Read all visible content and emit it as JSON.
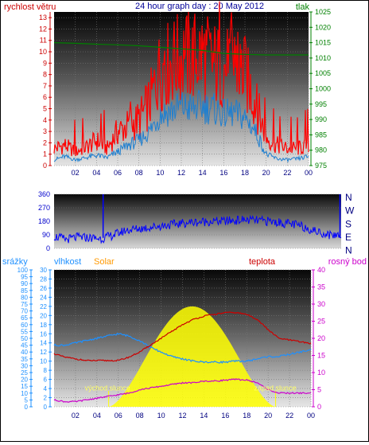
{
  "chart_data": [
    {
      "type": "line",
      "title": "24 hour graph day : 20 May 2012",
      "left_axis_label": "rychlost větru",
      "right_axis_label": "tlak",
      "x_ticks": [
        "02",
        "04",
        "06",
        "08",
        "10",
        "12",
        "14",
        "16",
        "18",
        "20",
        "22",
        "00"
      ],
      "left_ticks": [
        "0",
        "1",
        "2",
        "3",
        "4",
        "5",
        "6",
        "7",
        "8",
        "9",
        "10",
        "11",
        "12",
        "13"
      ],
      "right_ticks": [
        "975",
        "980",
        "985",
        "990",
        "995",
        "1000",
        "1005",
        "1010",
        "1015",
        "1020",
        "1025"
      ],
      "left_ylim": [
        0,
        13.5
      ],
      "right_ylim": [
        975,
        1025
      ],
      "colors": {
        "gust": "#ff0000",
        "wind": "#1e7fd0",
        "pressure": "#008000",
        "title": "#000099",
        "left_axis": "#cc0000",
        "right_axis": "#008000"
      },
      "series": [
        {
          "key": "pressure",
          "x": [
            0,
            2,
            4,
            6,
            8,
            10,
            12,
            14,
            16,
            18,
            20,
            22,
            24
          ],
          "values": [
            1015,
            1014.8,
            1014.5,
            1014.3,
            1014,
            1013.5,
            1013,
            1012.5,
            1011.5,
            1011.2,
            1011,
            1011,
            1011
          ]
        },
        {
          "key": "gust",
          "x": [
            0,
            1,
            2,
            3,
            4,
            5,
            6,
            7,
            8,
            9,
            10,
            11,
            12,
            13,
            14,
            15,
            16,
            17,
            18,
            19,
            20,
            21,
            22,
            23,
            24
          ],
          "values": [
            1.5,
            1.8,
            1.2,
            1.6,
            2.2,
            1.5,
            3,
            3.5,
            4,
            5.5,
            8.5,
            9,
            9.5,
            9.5,
            9.8,
            9,
            8.5,
            8.8,
            8,
            5.5,
            2.5,
            1.8,
            1.5,
            1.5,
            1.8
          ]
        },
        {
          "key": "wind",
          "x": [
            0,
            1,
            2,
            3,
            4,
            5,
            6,
            7,
            8,
            9,
            10,
            11,
            12,
            13,
            14,
            15,
            16,
            17,
            18,
            19,
            20,
            21,
            22,
            23,
            24
          ],
          "values": [
            0.5,
            0.8,
            0.5,
            0.7,
            0.9,
            0.7,
            1.2,
            1.8,
            2.2,
            3,
            4.5,
            4.8,
            5.2,
            5,
            5.2,
            5,
            4.5,
            4.6,
            4.2,
            3,
            1,
            0.6,
            0.5,
            0.6,
            0.8
          ]
        }
      ]
    },
    {
      "type": "line",
      "left_ticks": [
        "0",
        "90",
        "180",
        "270",
        "360"
      ],
      "right_ticks": [
        "N",
        "W",
        "S",
        "E",
        "N"
      ],
      "left_ylim": [
        0,
        360
      ],
      "colors": {
        "direction": "#0000ff"
      },
      "series": [
        {
          "key": "direction",
          "x": [
            0,
            1,
            2,
            3,
            4,
            5,
            6,
            7,
            8,
            9,
            10,
            11,
            12,
            13,
            14,
            15,
            16,
            17,
            18,
            19,
            20,
            21,
            22,
            23,
            24
          ],
          "values": [
            80,
            60,
            75,
            70,
            65,
            90,
            120,
            130,
            140,
            150,
            160,
            170,
            175,
            180,
            180,
            185,
            190,
            185,
            180,
            170,
            160,
            140,
            110,
            90,
            90
          ]
        }
      ],
      "direction_spikes": [
        {
          "x": 4.1,
          "value": 360
        },
        {
          "x": 23.9,
          "value": 360
        }
      ]
    },
    {
      "type": "area",
      "left_outer_label": "srážky",
      "left_inner_label": "vlhkost",
      "solar_label": "Solar",
      "right_inner_label": "teplota",
      "right_outer_label": "rosný bod",
      "x_ticks": [
        "02",
        "04",
        "06",
        "08",
        "10",
        "12",
        "14",
        "16",
        "18",
        "20",
        "22",
        "00"
      ],
      "outer_ticks": [
        "0",
        "5",
        "10",
        "15",
        "20",
        "25",
        "30",
        "35",
        "40",
        "45",
        "50",
        "55",
        "60",
        "65",
        "70",
        "75",
        "80",
        "85",
        "90",
        "95",
        "100"
      ],
      "inner_ticks": [
        "0",
        "2",
        "4",
        "6",
        "8",
        "10",
        "12",
        "14",
        "16",
        "18",
        "20",
        "22",
        "24",
        "26",
        "28",
        "30"
      ],
      "right_ticks": [
        "0",
        "5",
        "10",
        "15",
        "20",
        "25",
        "30",
        "35",
        "40"
      ],
      "inner_ylim": [
        0,
        30
      ],
      "right_ylim": [
        0,
        40
      ],
      "sunrise_label": "východ slunce",
      "sunset_label": "západ slunce",
      "sunrise_hour": 5.1,
      "sunset_hour": 20.7,
      "solar_peak": 22,
      "colors": {
        "solar": "#ffff00",
        "humidity": "#1e90ff",
        "temperature": "#cc0000",
        "dewpoint": "#cc00cc",
        "outer_axis": "#1e90ff",
        "inner_axis": "#1e90ff",
        "solar_text": "#ff9900",
        "right_axis": "#cc00cc",
        "temp_text": "#cc0000"
      },
      "series": [
        {
          "key": "humidity",
          "x": [
            0,
            1,
            2,
            3,
            4,
            5,
            6,
            7,
            8,
            9,
            10,
            11,
            12,
            13,
            14,
            15,
            16,
            17,
            18,
            19,
            20,
            21,
            22,
            23,
            24
          ],
          "values": [
            13.5,
            13.5,
            14,
            14.5,
            15,
            15.5,
            16,
            15.5,
            14.5,
            13,
            12,
            11,
            10.5,
            10,
            9.8,
            9.8,
            9.8,
            10,
            10,
            10.5,
            11,
            11,
            11.5,
            12,
            12.5
          ]
        },
        {
          "key": "temperature",
          "x": [
            0,
            1,
            2,
            3,
            4,
            5,
            6,
            7,
            8,
            9,
            10,
            11,
            12,
            13,
            14,
            15,
            16,
            17,
            18,
            19,
            20,
            21,
            22,
            23,
            24
          ],
          "values": [
            15.5,
            14.5,
            14,
            13.5,
            13.5,
            13.5,
            13.5,
            14.5,
            16,
            18,
            20,
            22,
            24,
            25.5,
            26.5,
            27,
            27.5,
            27.5,
            27,
            25.5,
            22.5,
            20,
            19.5,
            19,
            18.5
          ]
        },
        {
          "key": "dewpoint",
          "x": [
            0,
            1,
            2,
            3,
            4,
            5,
            6,
            7,
            8,
            9,
            10,
            11,
            12,
            13,
            14,
            15,
            16,
            17,
            18,
            19,
            20,
            21,
            22,
            23,
            24
          ],
          "values": [
            2,
            1.5,
            1.5,
            2,
            2.5,
            3,
            3.5,
            4,
            5,
            5.5,
            6,
            6.5,
            7,
            7,
            7.5,
            7.5,
            7.8,
            8,
            7.8,
            7,
            5,
            4,
            4,
            4,
            4
          ]
        }
      ]
    }
  ]
}
